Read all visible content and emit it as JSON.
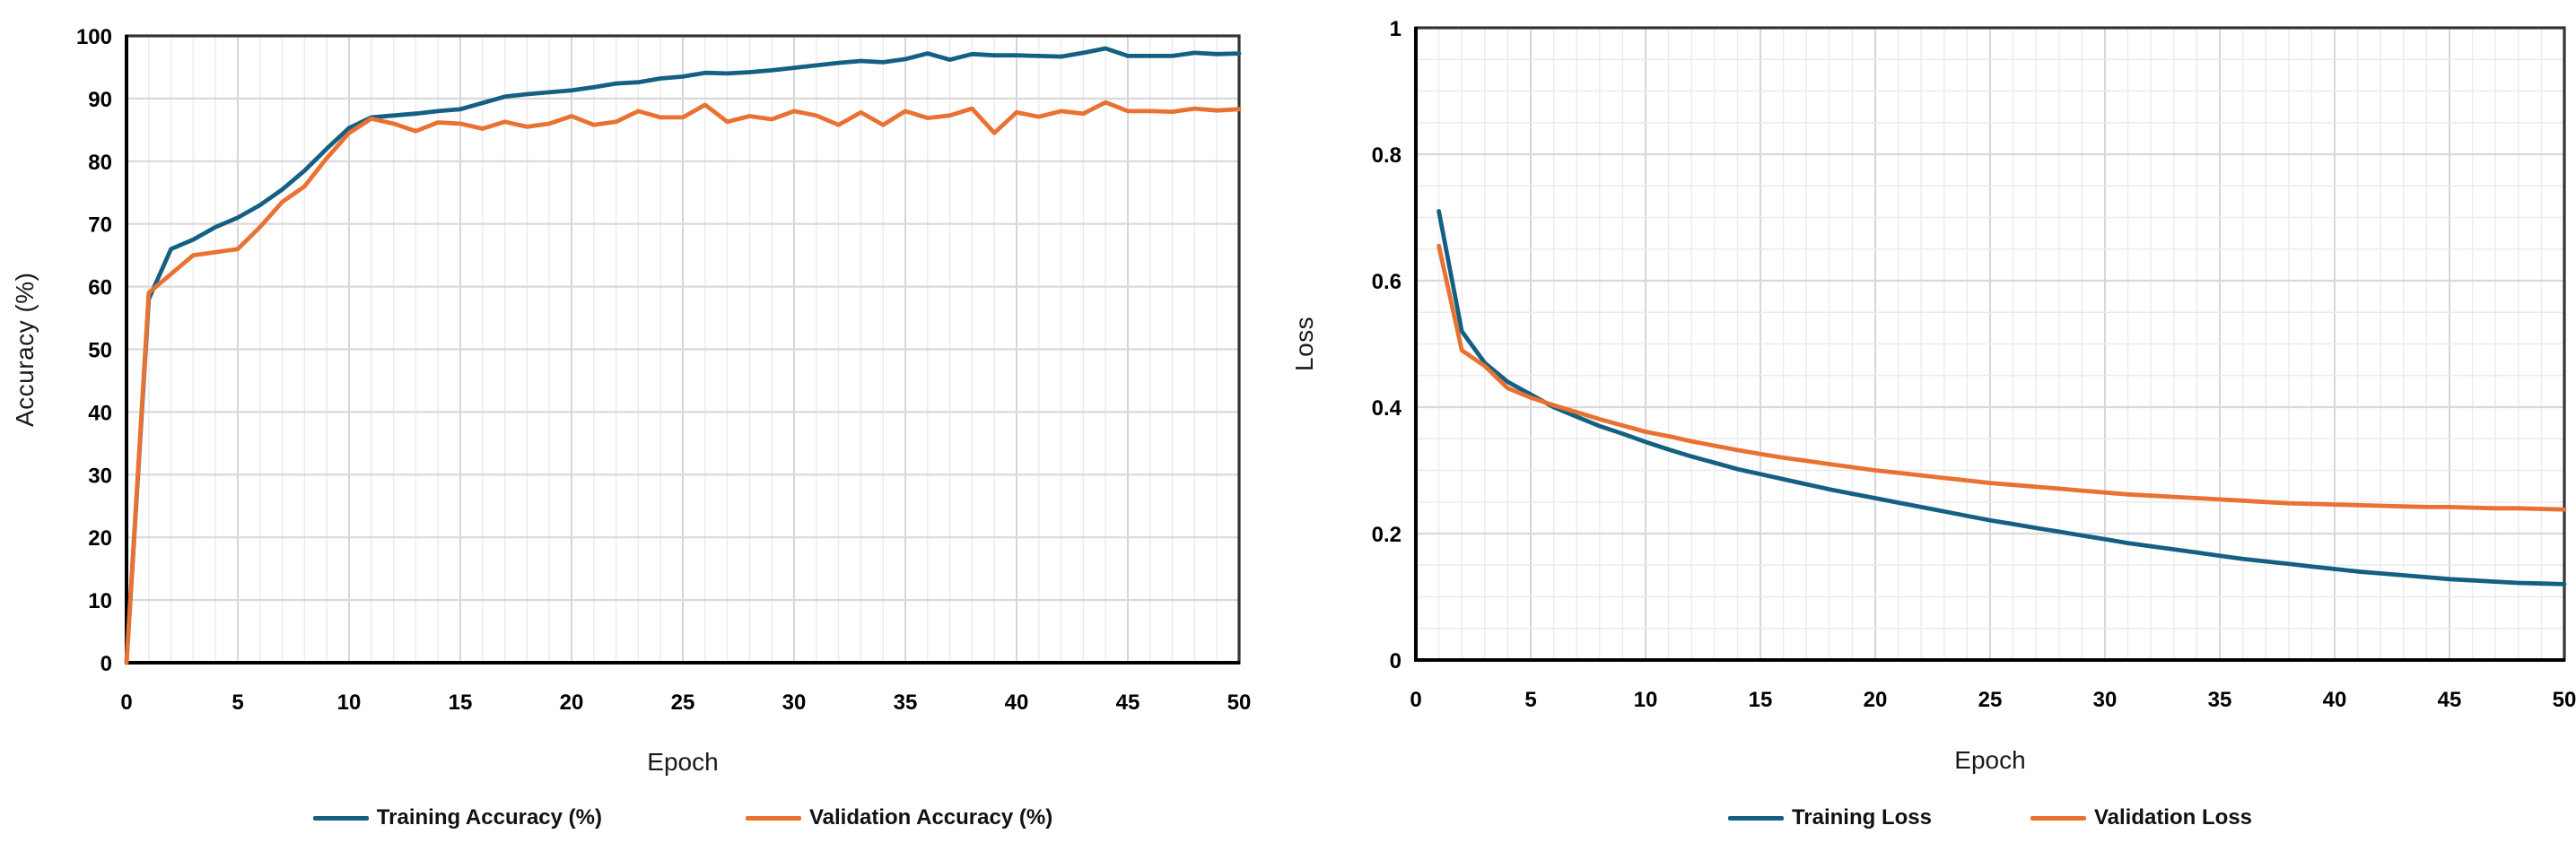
{
  "figure": {
    "background": "#ffffff",
    "grid_minor_color": "#ebebeb",
    "grid_major_color": "#d6d6d6",
    "grid_h_color": "#d9d9d9",
    "border_color": "#333333",
    "axis_color": "#000000",
    "tick_label_color": "#000000"
  },
  "chart_data": [
    {
      "id": "accuracy",
      "type": "line",
      "title": "",
      "xlabel": "Epoch",
      "ylabel": "Accuracy (%)",
      "xlim": [
        0,
        50
      ],
      "ylim": [
        0,
        100
      ],
      "grid": {
        "x_minor_step": 1,
        "x_major_step": 5,
        "y_minor_step": 10,
        "y_major_step": 10
      },
      "legend_position": "bottom",
      "x_ticks": [
        {
          "v": 0,
          "label": "0"
        },
        {
          "v": 5,
          "label": "5"
        },
        {
          "v": 10,
          "label": "10"
        },
        {
          "v": 15,
          "label": "15"
        },
        {
          "v": 20,
          "label": "20"
        },
        {
          "v": 25,
          "label": "25"
        },
        {
          "v": 30,
          "label": "30"
        },
        {
          "v": 35,
          "label": "35"
        },
        {
          "v": 40,
          "label": "40"
        },
        {
          "v": 45,
          "label": "45"
        },
        {
          "v": 50,
          "label": "50"
        }
      ],
      "y_ticks": [
        {
          "v": 0,
          "label": "0"
        },
        {
          "v": 10,
          "label": "10"
        },
        {
          "v": 20,
          "label": "20"
        },
        {
          "v": 30,
          "label": "30"
        },
        {
          "v": 40,
          "label": "40"
        },
        {
          "v": 50,
          "label": "50"
        },
        {
          "v": 60,
          "label": "60"
        },
        {
          "v": 70,
          "label": "70"
        },
        {
          "v": 80,
          "label": "80"
        },
        {
          "v": 90,
          "label": "90"
        },
        {
          "v": 100,
          "label": "100"
        }
      ],
      "series": [
        {
          "name": "Training Accuracy (%)",
          "color": "#156082",
          "x_start": 0,
          "values": [
            0,
            58,
            66,
            67.5,
            69.5,
            71,
            73,
            75.5,
            78.5,
            82,
            85.3,
            87,
            87.3,
            87.6,
            88,
            88.3,
            89.3,
            90.3,
            90.7,
            91,
            91.3,
            91.8,
            92.4,
            92.6,
            93.2,
            93.5,
            94.1,
            94,
            94.2,
            94.5,
            94.9,
            95.3,
            95.7,
            96,
            95.8,
            96.3,
            97.2,
            96.2,
            97.1,
            96.9,
            96.9,
            96.8,
            96.7,
            97.3,
            98,
            96.8,
            96.8,
            96.8,
            97.3,
            97.1,
            97.2
          ]
        },
        {
          "name": "Validation Accuracy (%)",
          "color": "#E97132",
          "x_start": 0,
          "values": [
            0,
            59,
            62,
            65,
            65.5,
            66,
            69.5,
            73.5,
            76,
            80.5,
            84.5,
            86.8,
            86,
            84.8,
            86.2,
            86,
            85.2,
            86.3,
            85.5,
            86,
            87.2,
            85.8,
            86.3,
            88,
            87,
            87,
            89,
            86.3,
            87.2,
            86.7,
            88,
            87.3,
            85.8,
            87.8,
            85.8,
            88,
            86.9,
            87.3,
            88.4,
            84.5,
            87.8,
            87.1,
            88,
            87.6,
            89.4,
            88,
            88,
            87.9,
            88.4,
            88.1,
            88.3
          ]
        }
      ]
    },
    {
      "id": "loss",
      "type": "line",
      "title": "",
      "xlabel": "Epoch",
      "ylabel": "Loss",
      "xlim": [
        0,
        50
      ],
      "ylim": [
        0,
        1
      ],
      "grid": {
        "x_minor_step": 1,
        "x_major_step": 5,
        "y_minor_step": 0.05,
        "y_major_step": 0.2
      },
      "legend_position": "bottom",
      "x_ticks": [
        {
          "v": 0,
          "label": "0"
        },
        {
          "v": 5,
          "label": "5"
        },
        {
          "v": 10,
          "label": "10"
        },
        {
          "v": 15,
          "label": "15"
        },
        {
          "v": 20,
          "label": "20"
        },
        {
          "v": 25,
          "label": "25"
        },
        {
          "v": 30,
          "label": "30"
        },
        {
          "v": 35,
          "label": "35"
        },
        {
          "v": 40,
          "label": "40"
        },
        {
          "v": 45,
          "label": "45"
        },
        {
          "v": 50,
          "label": "50"
        }
      ],
      "y_ticks": [
        {
          "v": 0,
          "label": "0"
        },
        {
          "v": 0.2,
          "label": "0.2"
        },
        {
          "v": 0.4,
          "label": "0.4"
        },
        {
          "v": 0.6,
          "label": "0.6"
        },
        {
          "v": 0.8,
          "label": "0.8"
        },
        {
          "v": 1,
          "label": "1"
        }
      ],
      "series": [
        {
          "name": "Training Loss",
          "color": "#156082",
          "x_start": 1,
          "values": [
            0.71,
            0.52,
            0.47,
            0.44,
            0.42,
            0.4,
            0.385,
            0.37,
            0.358,
            0.345,
            0.333,
            0.322,
            0.312,
            0.302,
            0.294,
            0.286,
            0.278,
            0.27,
            0.263,
            0.256,
            0.249,
            0.242,
            0.235,
            0.228,
            0.221,
            0.215,
            0.209,
            0.203,
            0.197,
            0.191,
            0.185,
            0.18,
            0.175,
            0.17,
            0.165,
            0.16,
            0.156,
            0.152,
            0.148,
            0.144,
            0.14,
            0.137,
            0.134,
            0.131,
            0.128,
            0.126,
            0.124,
            0.122,
            0.121,
            0.12
          ]
        },
        {
          "name": "Validation Loss",
          "color": "#E97132",
          "x_start": 1,
          "values": [
            0.655,
            0.49,
            0.465,
            0.43,
            0.415,
            0.403,
            0.392,
            0.381,
            0.371,
            0.361,
            0.354,
            0.346,
            0.339,
            0.332,
            0.326,
            0.32,
            0.315,
            0.31,
            0.305,
            0.3,
            0.296,
            0.292,
            0.288,
            0.284,
            0.28,
            0.277,
            0.274,
            0.271,
            0.268,
            0.265,
            0.262,
            0.26,
            0.258,
            0.256,
            0.254,
            0.252,
            0.25,
            0.248,
            0.247,
            0.246,
            0.245,
            0.244,
            0.243,
            0.242,
            0.242,
            0.241,
            0.24,
            0.24,
            0.239,
            0.238
          ]
        }
      ]
    }
  ]
}
